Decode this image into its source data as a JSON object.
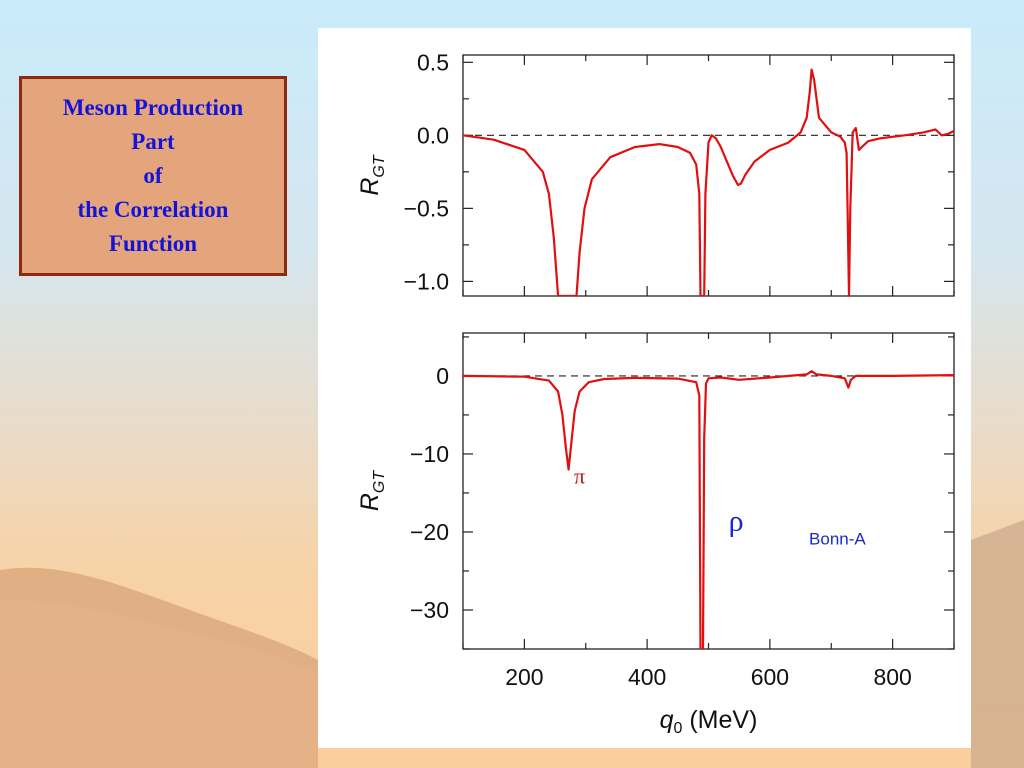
{
  "title_lines": [
    "Meson Production",
    "Part",
    "of",
    "the Correlation",
    "Function"
  ],
  "colors": {
    "title_text": "#1414d8",
    "title_box": "#e5a57c",
    "title_border": "#8e2a10",
    "curve": "#e01010",
    "annotation": "#1a28d0",
    "pi_label": "#c01818"
  },
  "chart_data": [
    {
      "type": "line",
      "panel": "top",
      "ylabel": "R",
      "ylabel_sub": "GT",
      "xlim": [
        100,
        900
      ],
      "ylim": [
        -1.1,
        0.55
      ],
      "yticks": [
        0.5,
        0.0,
        -0.5,
        -1.0
      ],
      "ytick_labels": [
        "0.5",
        "0.0",
        "−0.5",
        "−1.0"
      ],
      "reference_line": 0,
      "series": [
        {
          "x": [
            100,
            150,
            200,
            230,
            240,
            248,
            255,
            260,
            285,
            290,
            298,
            310,
            340,
            380,
            420,
            450,
            470,
            480,
            485,
            487,
            489,
            491,
            493,
            495,
            500,
            505,
            512,
            520,
            530,
            540,
            548,
            553,
            560,
            575,
            600,
            630,
            650,
            660,
            665,
            668,
            672,
            680,
            700,
            715,
            722,
            725,
            727,
            729,
            731,
            735,
            740,
            745,
            750,
            760,
            780,
            820,
            850,
            870,
            880,
            890,
            900
          ],
          "y": [
            0.0,
            -0.03,
            -0.1,
            -0.25,
            -0.4,
            -0.7,
            -1.1,
            -1.1,
            -1.1,
            -0.8,
            -0.5,
            -0.3,
            -0.15,
            -0.08,
            -0.06,
            -0.08,
            -0.12,
            -0.2,
            -0.4,
            -1.1,
            -1.1,
            -1.1,
            -1.1,
            -0.4,
            -0.05,
            0.0,
            -0.02,
            -0.08,
            -0.18,
            -0.28,
            -0.34,
            -0.33,
            -0.27,
            -0.18,
            -0.1,
            -0.05,
            0.02,
            0.12,
            0.3,
            0.45,
            0.38,
            0.12,
            0.02,
            -0.01,
            -0.05,
            -0.12,
            -0.6,
            -1.1,
            -0.5,
            0.02,
            0.05,
            -0.1,
            -0.08,
            -0.04,
            -0.02,
            0.0,
            0.02,
            0.04,
            0.0,
            0.01,
            0.03
          ]
        }
      ]
    },
    {
      "type": "line",
      "panel": "bottom",
      "xlabel": "q",
      "xlabel_sub": "0",
      "xlabel_unit": " (MeV)",
      "ylabel": "R",
      "ylabel_sub": "GT",
      "xlim": [
        100,
        900
      ],
      "ylim": [
        -35,
        5.5
      ],
      "xticks": [
        200,
        400,
        600,
        800
      ],
      "yticks": [
        0,
        -10,
        -20,
        -30
      ],
      "ytick_labels": [
        "0",
        "−10",
        "−20",
        "−30"
      ],
      "reference_line": 0,
      "series": [
        {
          "x": [
            100,
            200,
            240,
            255,
            262,
            268,
            272,
            276,
            282,
            290,
            305,
            330,
            380,
            450,
            480,
            485,
            487,
            489,
            491,
            493,
            496,
            500,
            520,
            550,
            600,
            660,
            668,
            676,
            700,
            722,
            728,
            732,
            740,
            800,
            900
          ],
          "y": [
            0,
            -0.1,
            -0.6,
            -2.0,
            -5.0,
            -9.5,
            -12.0,
            -9.0,
            -4.5,
            -2.0,
            -0.8,
            -0.4,
            -0.25,
            -0.35,
            -0.8,
            -2.5,
            -35,
            -35,
            -35,
            -8,
            -1.0,
            -0.3,
            -0.2,
            -0.5,
            -0.2,
            0.2,
            0.6,
            0.2,
            0.0,
            -0.3,
            -1.5,
            -0.5,
            0.0,
            0.0,
            0.1
          ]
        }
      ],
      "annotations": [
        {
          "text": "π",
          "x": 290,
          "y": -13.8,
          "color": "#c01818",
          "kind": "pi"
        },
        {
          "text": "ρ",
          "x": 545,
          "y": -19.8,
          "color": "#1a28d0",
          "kind": "rho"
        },
        {
          "text": "Bonn-A",
          "x": 710,
          "y": -21.6,
          "color": "#1a28d0",
          "kind": "bonn"
        }
      ]
    }
  ]
}
